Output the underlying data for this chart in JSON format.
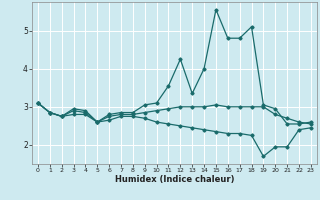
{
  "xlabel": "Humidex (Indice chaleur)",
  "bg_color": "#ceeaf0",
  "line_color": "#1a6b6b",
  "grid_color": "#ffffff",
  "xlim": [
    -0.5,
    23.5
  ],
  "ylim": [
    1.5,
    5.75
  ],
  "yticks": [
    2,
    3,
    4,
    5
  ],
  "xticks": [
    0,
    1,
    2,
    3,
    4,
    5,
    6,
    7,
    8,
    9,
    10,
    11,
    12,
    13,
    14,
    15,
    16,
    17,
    18,
    19,
    20,
    21,
    22,
    23
  ],
  "lines": [
    {
      "x": [
        0,
        1,
        2,
        3,
        4,
        5,
        6,
        7,
        8,
        9,
        10,
        11,
        12,
        13,
        14,
        15,
        16,
        17,
        18,
        19,
        20,
        21,
        22,
        23
      ],
      "y": [
        3.1,
        2.85,
        2.75,
        2.95,
        2.9,
        2.6,
        2.8,
        2.85,
        2.85,
        3.05,
        3.1,
        3.55,
        4.25,
        3.35,
        4.0,
        5.55,
        4.8,
        4.8,
        5.1,
        3.05,
        2.95,
        2.55,
        2.55,
        2.6
      ]
    },
    {
      "x": [
        0,
        1,
        2,
        3,
        4,
        5,
        6,
        7,
        8,
        9,
        10,
        11,
        12,
        13,
        14,
        15,
        16,
        17,
        18,
        19,
        20,
        21,
        22,
        23
      ],
      "y": [
        3.1,
        2.85,
        2.75,
        2.9,
        2.85,
        2.6,
        2.75,
        2.8,
        2.8,
        2.85,
        2.9,
        2.95,
        3.0,
        3.0,
        3.0,
        3.05,
        3.0,
        3.0,
        3.0,
        3.0,
        2.8,
        2.7,
        2.6,
        2.55
      ]
    },
    {
      "x": [
        0,
        1,
        2,
        3,
        4,
        5,
        6,
        7,
        8,
        9,
        10,
        11,
        12,
        13,
        14,
        15,
        16,
        17,
        18,
        19,
        20,
        21,
        22,
        23
      ],
      "y": [
        3.1,
        2.85,
        2.75,
        2.8,
        2.8,
        2.6,
        2.65,
        2.75,
        2.75,
        2.7,
        2.6,
        2.55,
        2.5,
        2.45,
        2.4,
        2.35,
        2.3,
        2.3,
        2.25,
        1.7,
        1.95,
        1.95,
        2.4,
        2.45
      ]
    }
  ]
}
